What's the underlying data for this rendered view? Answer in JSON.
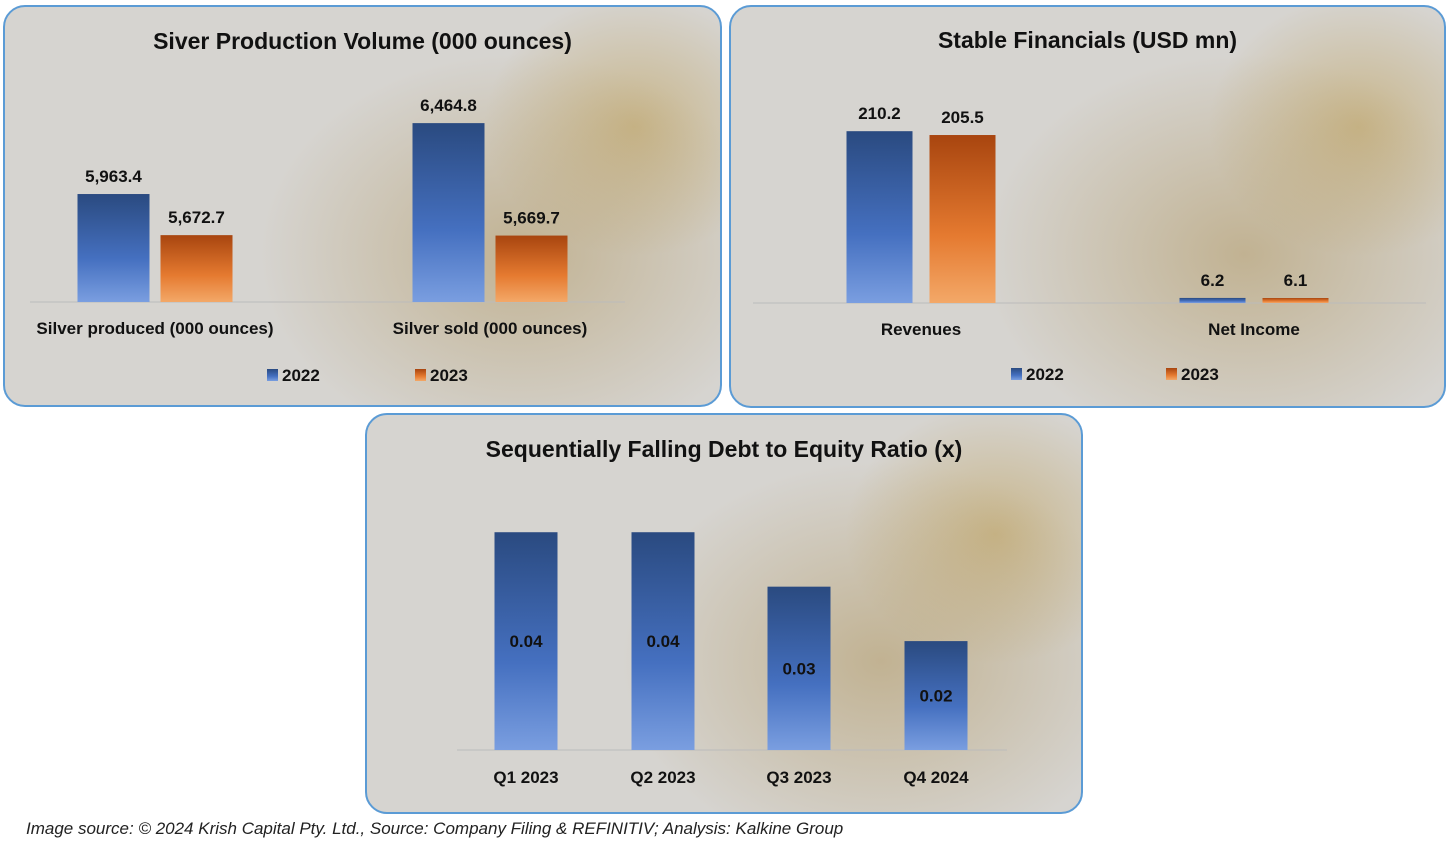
{
  "chart_data": [
    {
      "type": "bar",
      "title": "Siver Production Volume (000 ounces)",
      "categories": [
        "Silver produced (000 ounces)",
        "Silver sold (000 ounces)"
      ],
      "series": [
        {
          "name": "2022",
          "values": [
            5963.4,
            6464.8
          ],
          "labels": [
            "5,963.4",
            "6,464.8"
          ]
        },
        {
          "name": "2023",
          "values": [
            5672.7,
            5669.7
          ],
          "labels": [
            "5,672.7",
            "5,669.7"
          ]
        }
      ],
      "ylim": [
        5200,
        6600
      ],
      "legend": "bottom",
      "grid": false
    },
    {
      "type": "bar",
      "title": "Stable Financials (USD mn)",
      "categories": [
        "Revenues",
        "Net Income"
      ],
      "series": [
        {
          "name": "2022",
          "values": [
            210.2,
            6.2
          ],
          "labels": [
            "210.2",
            "6.2"
          ]
        },
        {
          "name": "2023",
          "values": [
            205.5,
            6.1
          ],
          "labels": [
            "205.5",
            "6.1"
          ]
        }
      ],
      "ylim": [
        0,
        230
      ],
      "legend": "bottom",
      "grid": false
    },
    {
      "type": "bar",
      "title": "Sequentially Falling Debt to Equity Ratio (x)",
      "categories": [
        "Q1 2023",
        "Q2 2023",
        "Q3 2023",
        "Q4 2024"
      ],
      "series": [
        {
          "name": "D/E",
          "values": [
            0.04,
            0.04,
            0.03,
            0.02
          ],
          "labels": [
            "0.04",
            "0.04",
            "0.03",
            "0.02"
          ]
        }
      ],
      "ylim": [
        0,
        0.045
      ],
      "legend": "none",
      "grid": false
    }
  ],
  "colors": {
    "blue_top": "#2a4a80",
    "blue_bottom": "#6f95d8",
    "orange_top": "#a8450f",
    "orange_bottom": "#f0a060",
    "border": "#5b9bd5"
  },
  "footer": "Image source: © 2024 Krish Capital Pty. Ltd., Source: Company Filing & REFINITIV; Analysis: Kalkine Group"
}
